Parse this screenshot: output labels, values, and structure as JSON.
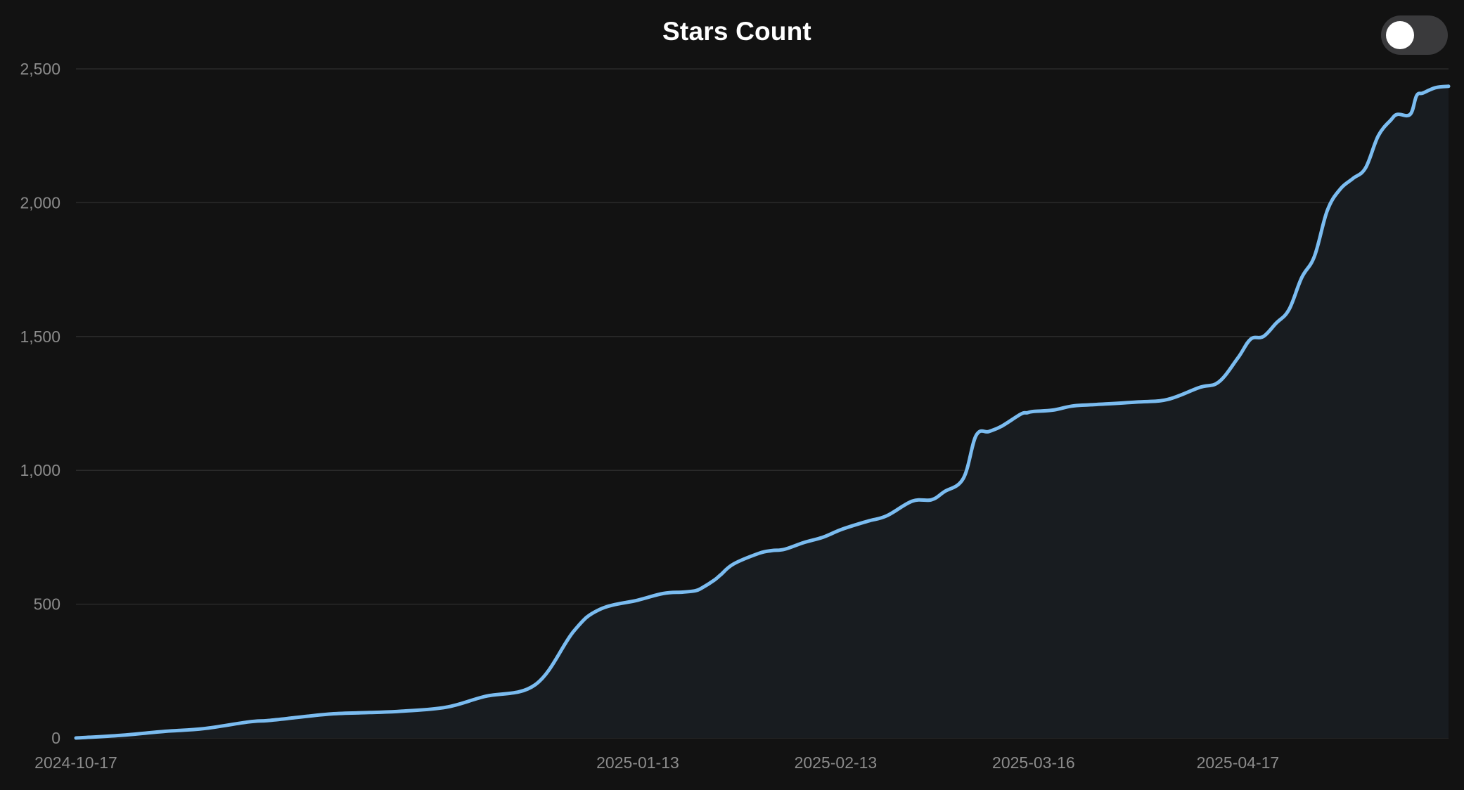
{
  "chart_data": {
    "type": "line",
    "title": "Stars Count",
    "xlabel": "",
    "ylabel": "",
    "y_ticks": [
      "0",
      "500",
      "1,000",
      "1,500",
      "2,000",
      "2,500"
    ],
    "y_tick_values": [
      0,
      500,
      1000,
      1500,
      2000,
      2500
    ],
    "x_ticks": [
      "2024-10-17",
      "2025-01-13",
      "2025-02-13",
      "2025-03-16",
      "2025-04-17"
    ],
    "xlim": [
      "2024-10-17",
      "2025-05-20"
    ],
    "ylim": [
      0,
      2500
    ],
    "grid": "horizontal",
    "legend": "none",
    "line_color": "#7bbcf0",
    "fill_color": "#181c20",
    "series": [
      {
        "x": [
          "2024-10-17",
          "2024-10-24",
          "2024-10-31",
          "2024-11-06",
          "2024-11-13",
          "2024-11-16",
          "2024-11-20",
          "2024-11-26",
          "2024-12-02",
          "2024-12-07",
          "2024-12-14",
          "2024-12-20",
          "2024-12-28",
          "2025-01-03",
          "2025-01-07",
          "2025-01-13",
          "2025-01-17",
          "2025-01-20",
          "2025-01-22",
          "2025-01-23",
          "2025-01-25",
          "2025-01-26",
          "2025-01-28",
          "2025-02-01",
          "2025-02-03",
          "2025-02-05",
          "2025-02-08",
          "2025-02-11",
          "2025-02-14",
          "2025-02-18",
          "2025-02-21",
          "2025-02-25",
          "2025-02-28",
          "2025-03-02",
          "2025-03-05",
          "2025-03-07",
          "2025-03-09",
          "2025-03-11",
          "2025-03-14",
          "2025-03-15",
          "2025-03-16",
          "2025-03-19",
          "2025-03-22",
          "2025-03-25",
          "2025-04-01",
          "2025-04-06",
          "2025-04-11",
          "2025-04-14",
          "2025-04-17",
          "2025-04-19",
          "2025-04-21",
          "2025-04-23",
          "2025-04-25",
          "2025-04-27",
          "2025-04-29",
          "2025-05-01",
          "2025-05-03",
          "2025-05-05",
          "2025-05-07",
          "2025-05-09",
          "2025-05-11",
          "2025-05-12",
          "2025-05-14",
          "2025-05-15",
          "2025-05-16",
          "2025-05-18",
          "2025-05-20"
        ],
        "y": [
          0,
          10,
          25,
          35,
          60,
          65,
          75,
          90,
          95,
          100,
          115,
          155,
          200,
          400,
          480,
          515,
          540,
          545,
          550,
          560,
          590,
          610,
          650,
          690,
          700,
          705,
          730,
          750,
          780,
          810,
          830,
          885,
          890,
          920,
          970,
          1130,
          1145,
          1165,
          1210,
          1215,
          1220,
          1225,
          1240,
          1245,
          1255,
          1265,
          1310,
          1330,
          1420,
          1490,
          1500,
          1550,
          1600,
          1720,
          1800,
          1970,
          2050,
          2090,
          2130,
          2250,
          2310,
          2330,
          2330,
          2400,
          2410,
          2430,
          2435
        ]
      }
    ]
  },
  "toggle": {
    "state": "off"
  }
}
